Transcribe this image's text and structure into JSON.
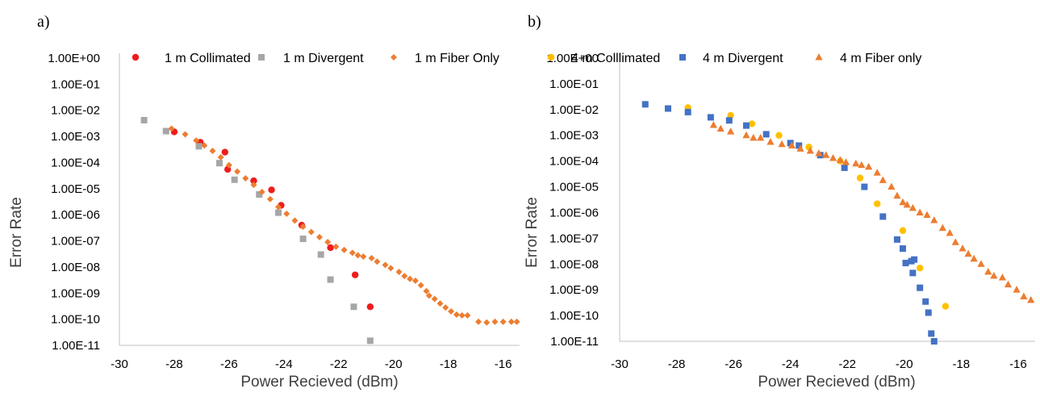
{
  "chart_data": [
    {
      "panel_label": "a)",
      "type": "scatter",
      "xlabel": "Power Recieved (dBm)",
      "ylabel": "Error Rate",
      "xlim": [
        -30,
        -15.4
      ],
      "xticks": [
        -30,
        -28,
        -26,
        -24,
        -22,
        -20,
        -18,
        -16
      ],
      "yscale": "log",
      "ylim_exp": [
        -11,
        0
      ],
      "ytick_labels": [
        "1.00E+00",
        "1.00E-01",
        "1.00E-02",
        "1.00E-03",
        "1.00E-04",
        "1.00E-05",
        "1.00E-06",
        "1.00E-07",
        "1.00E-08",
        "1.00E-09",
        "1.00E-10",
        "1.00E-11"
      ],
      "grid": false,
      "legend": "top",
      "series": [
        {
          "name": "1 m Collimated",
          "marker": "circle",
          "color": "#ee1c1c",
          "points": [
            [
              -28.0,
              0.0015
            ],
            [
              -27.05,
              0.0006
            ],
            [
              -26.15,
              0.00025
            ],
            [
              -26.05,
              5.5e-05
            ],
            [
              -25.1,
              2e-05
            ],
            [
              -24.45,
              9e-06
            ],
            [
              -24.1,
              2.3e-06
            ],
            [
              -23.35,
              4e-07
            ],
            [
              -22.3,
              5.5e-08
            ],
            [
              -21.4,
              5e-09
            ],
            [
              -20.85,
              3e-10
            ]
          ]
        },
        {
          "name": "1 m Divergent",
          "marker": "square",
          "color": "#a6a6a6",
          "points": [
            [
              -29.1,
              0.0042
            ],
            [
              -28.3,
              0.0016
            ],
            [
              -27.1,
              0.00042
            ],
            [
              -26.35,
              9.5e-05
            ],
            [
              -25.8,
              2.2e-05
            ],
            [
              -24.9,
              6e-06
            ],
            [
              -24.2,
              1.2e-06
            ],
            [
              -23.3,
              1.2e-07
            ],
            [
              -22.65,
              3e-08
            ],
            [
              -22.3,
              3.3e-09
            ],
            [
              -21.45,
              3e-10
            ],
            [
              -20.85,
              1.5e-11
            ]
          ]
        },
        {
          "name": "1 m Fiber Only",
          "marker": "diamond",
          "color": "#ed7d31",
          "points": [
            [
              -28.1,
              0.002
            ],
            [
              -27.6,
              0.0012
            ],
            [
              -27.2,
              0.0007
            ],
            [
              -26.9,
              0.00045
            ],
            [
              -26.6,
              0.00028
            ],
            [
              -26.3,
              0.00016
            ],
            [
              -26.0,
              8e-05
            ],
            [
              -25.7,
              4.5e-05
            ],
            [
              -25.4,
              2.5e-05
            ],
            [
              -25.1,
              1.4e-05
            ],
            [
              -24.8,
              7.5e-06
            ],
            [
              -24.5,
              4e-06
            ],
            [
              -24.2,
              2e-06
            ],
            [
              -23.9,
              1.1e-06
            ],
            [
              -23.6,
              6e-07
            ],
            [
              -23.3,
              3.5e-07
            ],
            [
              -23.0,
              2.2e-07
            ],
            [
              -22.7,
              1.4e-07
            ],
            [
              -22.4,
              9e-08
            ],
            [
              -22.1,
              6e-08
            ],
            [
              -21.8,
              4.5e-08
            ],
            [
              -21.5,
              3.5e-08
            ],
            [
              -21.3,
              2.8e-08
            ],
            [
              -21.1,
              2.5e-08
            ],
            [
              -20.8,
              2.2e-08
            ],
            [
              -20.6,
              1.6e-08
            ],
            [
              -20.3,
              1.2e-08
            ],
            [
              -20.1,
              9e-09
            ],
            [
              -19.8,
              6.5e-09
            ],
            [
              -19.6,
              4.5e-09
            ],
            [
              -19.4,
              3.5e-09
            ],
            [
              -19.2,
              3e-09
            ],
            [
              -19.0,
              2e-09
            ],
            [
              -18.8,
              1.2e-09
            ],
            [
              -18.7,
              8e-10
            ],
            [
              -18.5,
              6e-10
            ],
            [
              -18.3,
              4e-10
            ],
            [
              -18.1,
              2.8e-10
            ],
            [
              -17.9,
              2e-10
            ],
            [
              -17.7,
              1.5e-10
            ],
            [
              -17.5,
              1.4e-10
            ],
            [
              -17.3,
              1.4e-10
            ],
            [
              -16.9,
              8e-11
            ],
            [
              -16.6,
              7.5e-11
            ],
            [
              -16.3,
              8e-11
            ],
            [
              -16.0,
              8e-11
            ],
            [
              -15.7,
              8e-11
            ],
            [
              -15.5,
              8e-11
            ]
          ]
        }
      ]
    },
    {
      "panel_label": "b)",
      "type": "scatter",
      "xlabel": "Power Recieved (dBm)",
      "ylabel": "Error Rate",
      "xlim": [
        -30,
        -15.4
      ],
      "xticks": [
        -30,
        -28,
        -26,
        -24,
        -22,
        -20,
        -18,
        -16
      ],
      "yscale": "log",
      "ylim_exp": [
        -11,
        0
      ],
      "ytick_labels": [
        "1.00E+00",
        "1.00E-01",
        "1.00E-02",
        "1.00E-03",
        "1.00E-04",
        "1.00E-05",
        "1.00E-06",
        "1.00E-07",
        "1.00E-08",
        "1.00E-09",
        "1.00E-10",
        "1.00E-11"
      ],
      "grid": false,
      "legend": "top",
      "series": [
        {
          "name": "4 m Colllimated",
          "marker": "circle",
          "color": "#ffc000",
          "points": [
            [
              -27.6,
              0.012
            ],
            [
              -26.1,
              0.006
            ],
            [
              -25.35,
              0.0028
            ],
            [
              -24.4,
              0.001
            ],
            [
              -23.35,
              0.00035
            ],
            [
              -22.25,
              0.0001
            ],
            [
              -21.55,
              2.2e-05
            ],
            [
              -20.95,
              2.2e-06
            ],
            [
              -20.05,
              2e-07
            ],
            [
              -19.45,
              7e-09
            ],
            [
              -18.55,
              2.3e-10
            ]
          ]
        },
        {
          "name": "4 m Divergent",
          "marker": "square",
          "color": "#4472c4",
          "points": [
            [
              -29.1,
              0.016
            ],
            [
              -28.3,
              0.011
            ],
            [
              -27.6,
              0.008
            ],
            [
              -26.8,
              0.005
            ],
            [
              -26.15,
              0.0038
            ],
            [
              -25.55,
              0.0024
            ],
            [
              -24.85,
              0.0011
            ],
            [
              -24.0,
              0.0005
            ],
            [
              -23.7,
              0.0004
            ],
            [
              -22.95,
              0.00017
            ],
            [
              -22.1,
              5.5e-05
            ],
            [
              -21.4,
              1e-05
            ],
            [
              -20.75,
              7e-07
            ],
            [
              -20.25,
              9e-08
            ],
            [
              -20.05,
              4e-08
            ],
            [
              -19.95,
              1.1e-08
            ],
            [
              -19.75,
              1.3e-08
            ],
            [
              -19.65,
              1.5e-08
            ],
            [
              -19.7,
              4.5e-09
            ],
            [
              -19.45,
              1.2e-09
            ],
            [
              -19.25,
              3.5e-10
            ],
            [
              -19.15,
              1.3e-10
            ],
            [
              -19.05,
              2e-11
            ],
            [
              -18.95,
              1e-11
            ]
          ]
        },
        {
          "name": "4 m Fiber only",
          "marker": "triangle",
          "color": "#ed7d31",
          "points": [
            [
              -26.7,
              0.0025
            ],
            [
              -26.45,
              0.0018
            ],
            [
              -26.1,
              0.0014
            ],
            [
              -25.55,
              0.001
            ],
            [
              -25.3,
              0.0008
            ],
            [
              -25.05,
              0.0008
            ],
            [
              -24.7,
              0.00055
            ],
            [
              -24.3,
              0.00045
            ],
            [
              -23.95,
              0.0004
            ],
            [
              -23.65,
              0.0003
            ],
            [
              -23.3,
              0.00025
            ],
            [
              -23.0,
              0.0002
            ],
            [
              -22.75,
              0.00017
            ],
            [
              -22.5,
              0.00013
            ],
            [
              -22.25,
              0.00011
            ],
            [
              -22.05,
              9e-05
            ],
            [
              -21.7,
              8e-05
            ],
            [
              -21.5,
              7e-05
            ],
            [
              -21.25,
              6e-05
            ],
            [
              -20.95,
              3.5e-05
            ],
            [
              -20.75,
              1.8e-05
            ],
            [
              -20.45,
              1e-05
            ],
            [
              -20.25,
              4.5e-06
            ],
            [
              -20.05,
              2.5e-06
            ],
            [
              -19.9,
              2e-06
            ],
            [
              -19.7,
              1.5e-06
            ],
            [
              -19.45,
              1e-06
            ],
            [
              -19.2,
              8e-07
            ],
            [
              -18.95,
              5e-07
            ],
            [
              -18.65,
              2.5e-07
            ],
            [
              -18.4,
              1.6e-07
            ],
            [
              -18.2,
              7e-08
            ],
            [
              -17.95,
              4e-08
            ],
            [
              -17.75,
              2.5e-08
            ],
            [
              -17.55,
              1.6e-08
            ],
            [
              -17.3,
              1e-08
            ],
            [
              -17.05,
              5e-09
            ],
            [
              -16.85,
              3.5e-09
            ],
            [
              -16.55,
              3e-09
            ],
            [
              -16.35,
              1.6e-09
            ],
            [
              -16.05,
              1e-09
            ],
            [
              -15.8,
              5.5e-10
            ],
            [
              -15.55,
              4e-10
            ]
          ]
        }
      ]
    }
  ]
}
